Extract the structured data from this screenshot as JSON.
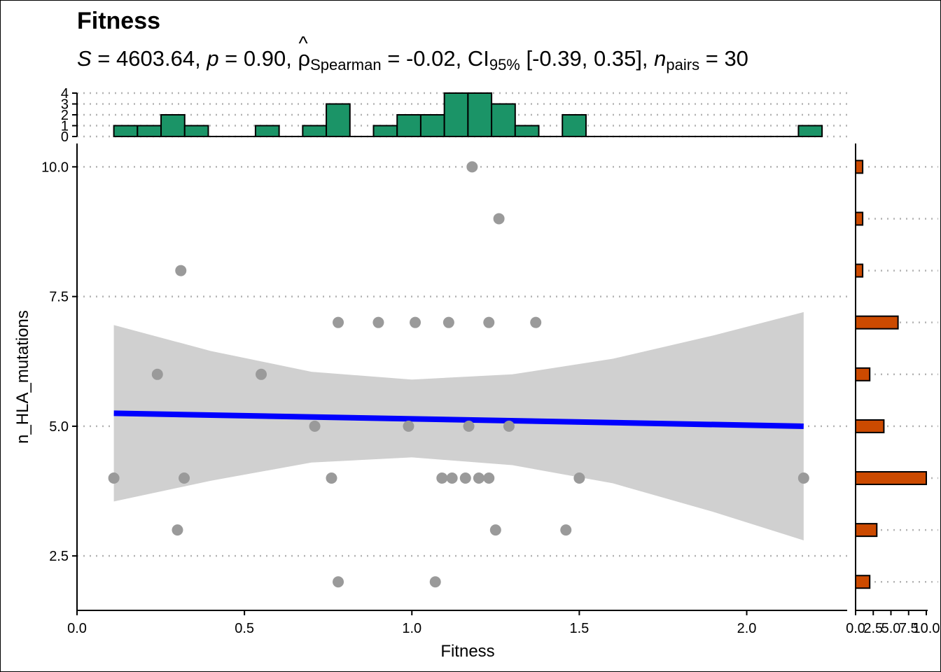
{
  "title": "Fitness",
  "subtitle": {
    "S_symbol": "S",
    "S_value": " = 4603.64, ",
    "p_symbol": "p",
    "p_value": " = 0.90, ",
    "rho_symbol": "ρ",
    "rho_hat": "^",
    "rho_sub": "Spearman",
    "rho_value": " = -0.02, CI",
    "ci_sub": "95%",
    "ci_value": " [-0.39, 0.35], ",
    "n_symbol": "n",
    "n_sub": "pairs",
    "n_value": " = 30"
  },
  "chart_data": [
    {
      "type": "scatter",
      "title": "Fitness",
      "xlabel": "Fitness",
      "ylabel": "n_HLA_mutations",
      "xlim": [
        0,
        2.3
      ],
      "ylim": [
        1.45,
        10.45
      ],
      "xticks": [
        "0.0",
        "0.5",
        "1.0",
        "1.5",
        "2.0"
      ],
      "yticks": [
        "2.5",
        "5.0",
        "7.5",
        "10.0"
      ],
      "grid": "horizontal dotted",
      "points": [
        {
          "x": 1.18,
          "y": 10
        },
        {
          "x": 1.26,
          "y": 9
        },
        {
          "x": 0.31,
          "y": 8
        },
        {
          "x": 0.78,
          "y": 7
        },
        {
          "x": 0.9,
          "y": 7
        },
        {
          "x": 1.01,
          "y": 7
        },
        {
          "x": 1.11,
          "y": 7
        },
        {
          "x": 1.23,
          "y": 7
        },
        {
          "x": 1.37,
          "y": 7
        },
        {
          "x": 0.24,
          "y": 6
        },
        {
          "x": 0.55,
          "y": 6
        },
        {
          "x": 0.71,
          "y": 5
        },
        {
          "x": 0.99,
          "y": 5
        },
        {
          "x": 1.17,
          "y": 5
        },
        {
          "x": 1.29,
          "y": 5
        },
        {
          "x": 0.11,
          "y": 4
        },
        {
          "x": 0.32,
          "y": 4
        },
        {
          "x": 0.76,
          "y": 4
        },
        {
          "x": 1.09,
          "y": 4
        },
        {
          "x": 1.12,
          "y": 4
        },
        {
          "x": 1.16,
          "y": 4
        },
        {
          "x": 1.2,
          "y": 4
        },
        {
          "x": 1.23,
          "y": 4
        },
        {
          "x": 1.5,
          "y": 4
        },
        {
          "x": 2.17,
          "y": 4
        },
        {
          "x": 0.3,
          "y": 3
        },
        {
          "x": 1.25,
          "y": 3
        },
        {
          "x": 1.46,
          "y": 3
        },
        {
          "x": 0.78,
          "y": 2
        },
        {
          "x": 1.07,
          "y": 2
        }
      ],
      "regression": {
        "x": [
          0.11,
          2.17
        ],
        "y": [
          5.25,
          5.0
        ],
        "color": "#0000ff"
      },
      "confidence_band": {
        "x": [
          0.11,
          0.4,
          0.7,
          1.0,
          1.3,
          1.6,
          1.9,
          2.17
        ],
        "upper": [
          6.95,
          6.45,
          6.05,
          5.9,
          6.0,
          6.3,
          6.75,
          7.2
        ],
        "lower": [
          3.55,
          3.95,
          4.3,
          4.4,
          4.25,
          3.9,
          3.35,
          2.8
        ],
        "color": "#d0d0d0"
      },
      "point_color": "#9a9a9a"
    },
    {
      "type": "bar",
      "role": "x marginal histogram",
      "bins_start": 0.11,
      "bin_width": 0.0705,
      "counts": [
        1,
        1,
        2,
        1,
        0,
        0,
        1,
        0,
        1,
        3,
        0,
        1,
        2,
        2,
        4,
        4,
        3,
        1,
        0,
        2,
        0,
        0,
        0,
        0,
        0,
        0,
        0,
        0,
        0,
        1
      ],
      "yticks": [
        "0",
        "1",
        "2",
        "3",
        "4"
      ],
      "ylim": [
        0,
        4
      ],
      "color": "#1b9467"
    },
    {
      "type": "bar",
      "role": "y marginal histogram",
      "orientation": "horizontal",
      "categories": [
        2,
        3,
        4,
        5,
        6,
        7,
        8,
        9,
        10
      ],
      "values": [
        2,
        3,
        10,
        4,
        2,
        6,
        1,
        1,
        1
      ],
      "xticks": [
        "0.0",
        "2.5",
        "5.0",
        "7.5",
        "10.0"
      ],
      "xlim": [
        0,
        10
      ],
      "color": "#cc4a00"
    }
  ]
}
